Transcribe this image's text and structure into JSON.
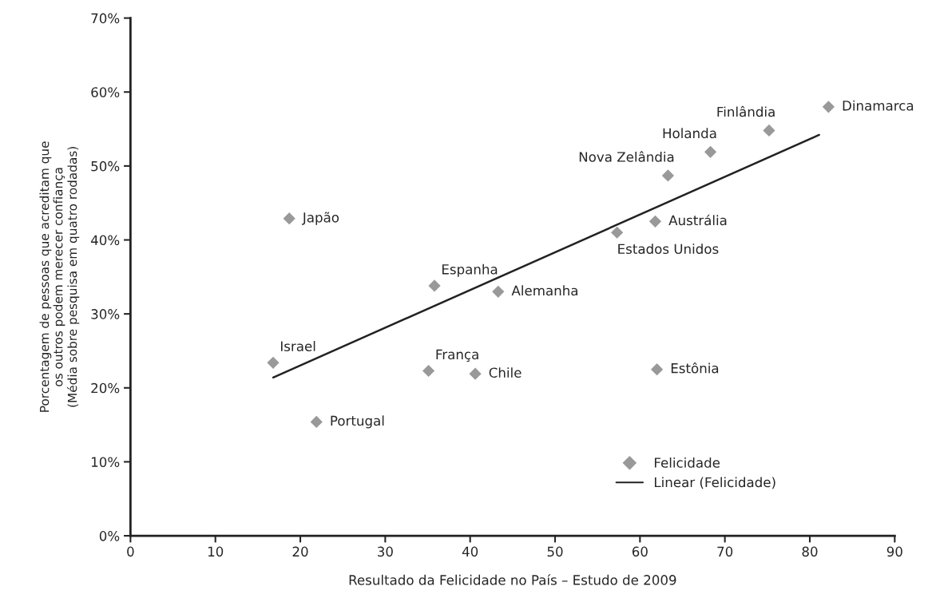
{
  "chart_data": {
    "type": "scatter",
    "xlabel": "Resultado da Felicidade no País – Estudo de 2009",
    "ylabel": "Porcentagem de pessoas que acreditam que\nos outros podem merecer confiança\n(Média sobre pesquisa em quatro rodadas)",
    "xlim": [
      0,
      90
    ],
    "xticks": [
      0,
      10,
      20,
      30,
      40,
      50,
      60,
      70,
      80,
      90
    ],
    "ylim": [
      0,
      70
    ],
    "yticks": [
      {
        "value": 0,
        "label": "0%"
      },
      {
        "value": 10,
        "label": "10%"
      },
      {
        "value": 20,
        "label": "20%"
      },
      {
        "value": 30,
        "label": "30%"
      },
      {
        "value": 40,
        "label": "40%"
      },
      {
        "value": 50,
        "label": "50%"
      },
      {
        "value": 60,
        "label": "60%"
      },
      {
        "value": 70,
        "label": "70%"
      }
    ],
    "grid": false,
    "legend": "bottom right",
    "series": [
      {
        "name": "Felicidade",
        "color": "#999999",
        "marker": "diamond",
        "x": [
          18.7,
          35.8,
          43.3,
          16.8,
          35.1,
          40.6,
          21.9,
          82.2,
          75.2,
          68.3,
          63.3,
          61.8,
          57.3,
          62.0
        ],
        "values": [
          42.9,
          33.8,
          33.0,
          23.4,
          22.3,
          21.9,
          15.4,
          58.0,
          54.8,
          51.9,
          48.7,
          42.5,
          41.0,
          22.5
        ]
      },
      {
        "type": "line",
        "name": "Linear (Felicidade)",
        "color": "#222222",
        "line_style": "solid",
        "x": [
          16.8,
          81.1
        ],
        "values": [
          21.4,
          54.2
        ]
      }
    ],
    "annotations": [
      {
        "text": "Japão",
        "x": 18.7,
        "y": 42.9
      },
      {
        "text": "Espanha",
        "x": 35.8,
        "y": 33.8
      },
      {
        "text": "Alemanha",
        "x": 43.3,
        "y": 33.0
      },
      {
        "text": "Israel",
        "x": 16.8,
        "y": 23.4
      },
      {
        "text": "França",
        "x": 35.1,
        "y": 22.3
      },
      {
        "text": "Chile",
        "x": 40.6,
        "y": 21.9
      },
      {
        "text": "Portugal",
        "x": 21.9,
        "y": 15.4
      },
      {
        "text": "Dinamarca",
        "x": 82.2,
        "y": 58.0
      },
      {
        "text": "Finlândia",
        "x": 75.2,
        "y": 54.8
      },
      {
        "text": "Holanda",
        "x": 68.3,
        "y": 51.9
      },
      {
        "text": "Nova Zelândia",
        "x": 63.3,
        "y": 48.7
      },
      {
        "text": "Austrália",
        "x": 61.8,
        "y": 42.5
      },
      {
        "text": "Estados Unidos",
        "x": 57.3,
        "y": 41.0
      },
      {
        "text": "Estônia",
        "x": 62.0,
        "y": 22.5
      }
    ]
  }
}
